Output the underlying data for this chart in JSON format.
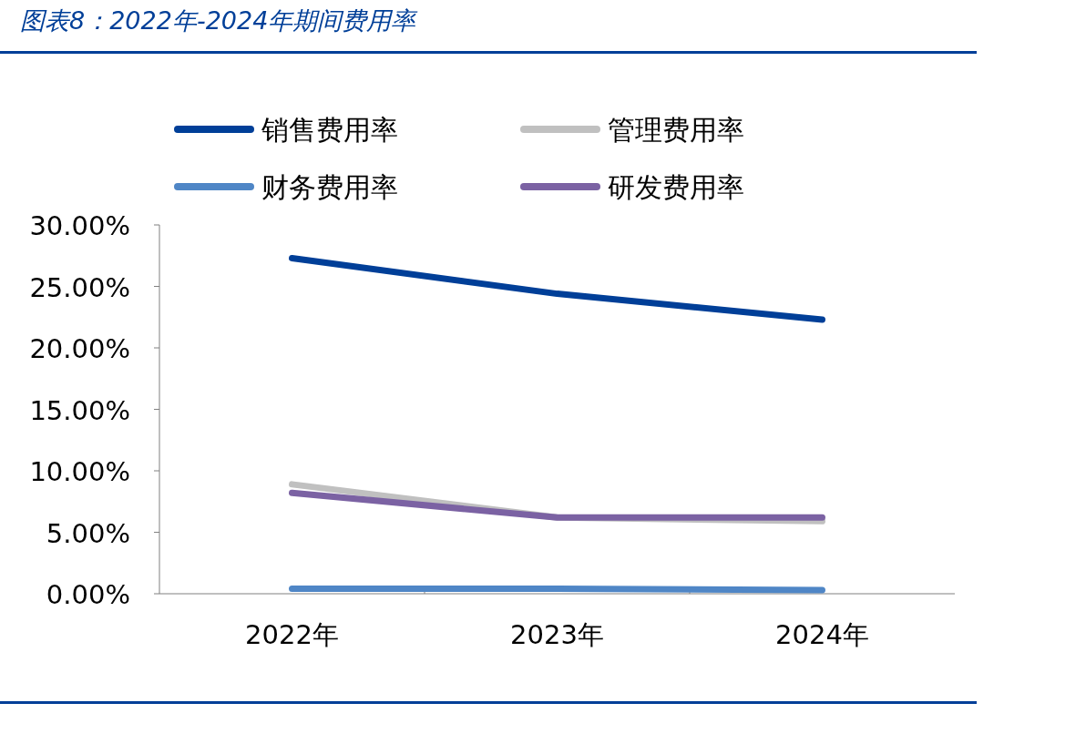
{
  "chart_data": {
    "type": "line",
    "title": "图表8：2022年-2024年期间费用率",
    "categories": [
      "2022年",
      "2023年",
      "2024年"
    ],
    "series": [
      {
        "name": "销售费用率",
        "color": "#003f98",
        "values": [
          27.3,
          24.4,
          22.3
        ]
      },
      {
        "name": "管理费用率",
        "color": "#c0c0c0",
        "values": [
          8.9,
          6.2,
          5.9
        ]
      },
      {
        "name": "财务费用率",
        "color": "#4f86c6",
        "values": [
          0.4,
          0.4,
          0.3
        ]
      },
      {
        "name": "研发费用率",
        "color": "#7b62a3",
        "values": [
          8.2,
          6.2,
          6.2
        ]
      }
    ],
    "ylim": [
      0,
      30
    ],
    "yticks": [
      {
        "value": 0,
        "label": "0.00%"
      },
      {
        "value": 5,
        "label": "5.00%"
      },
      {
        "value": 10,
        "label": "10.00%"
      },
      {
        "value": 15,
        "label": "15.00%"
      },
      {
        "value": 20,
        "label": "20.00%"
      },
      {
        "value": 25,
        "label": "25.00%"
      },
      {
        "value": 30,
        "label": "30.00%"
      }
    ],
    "legend": "top"
  }
}
